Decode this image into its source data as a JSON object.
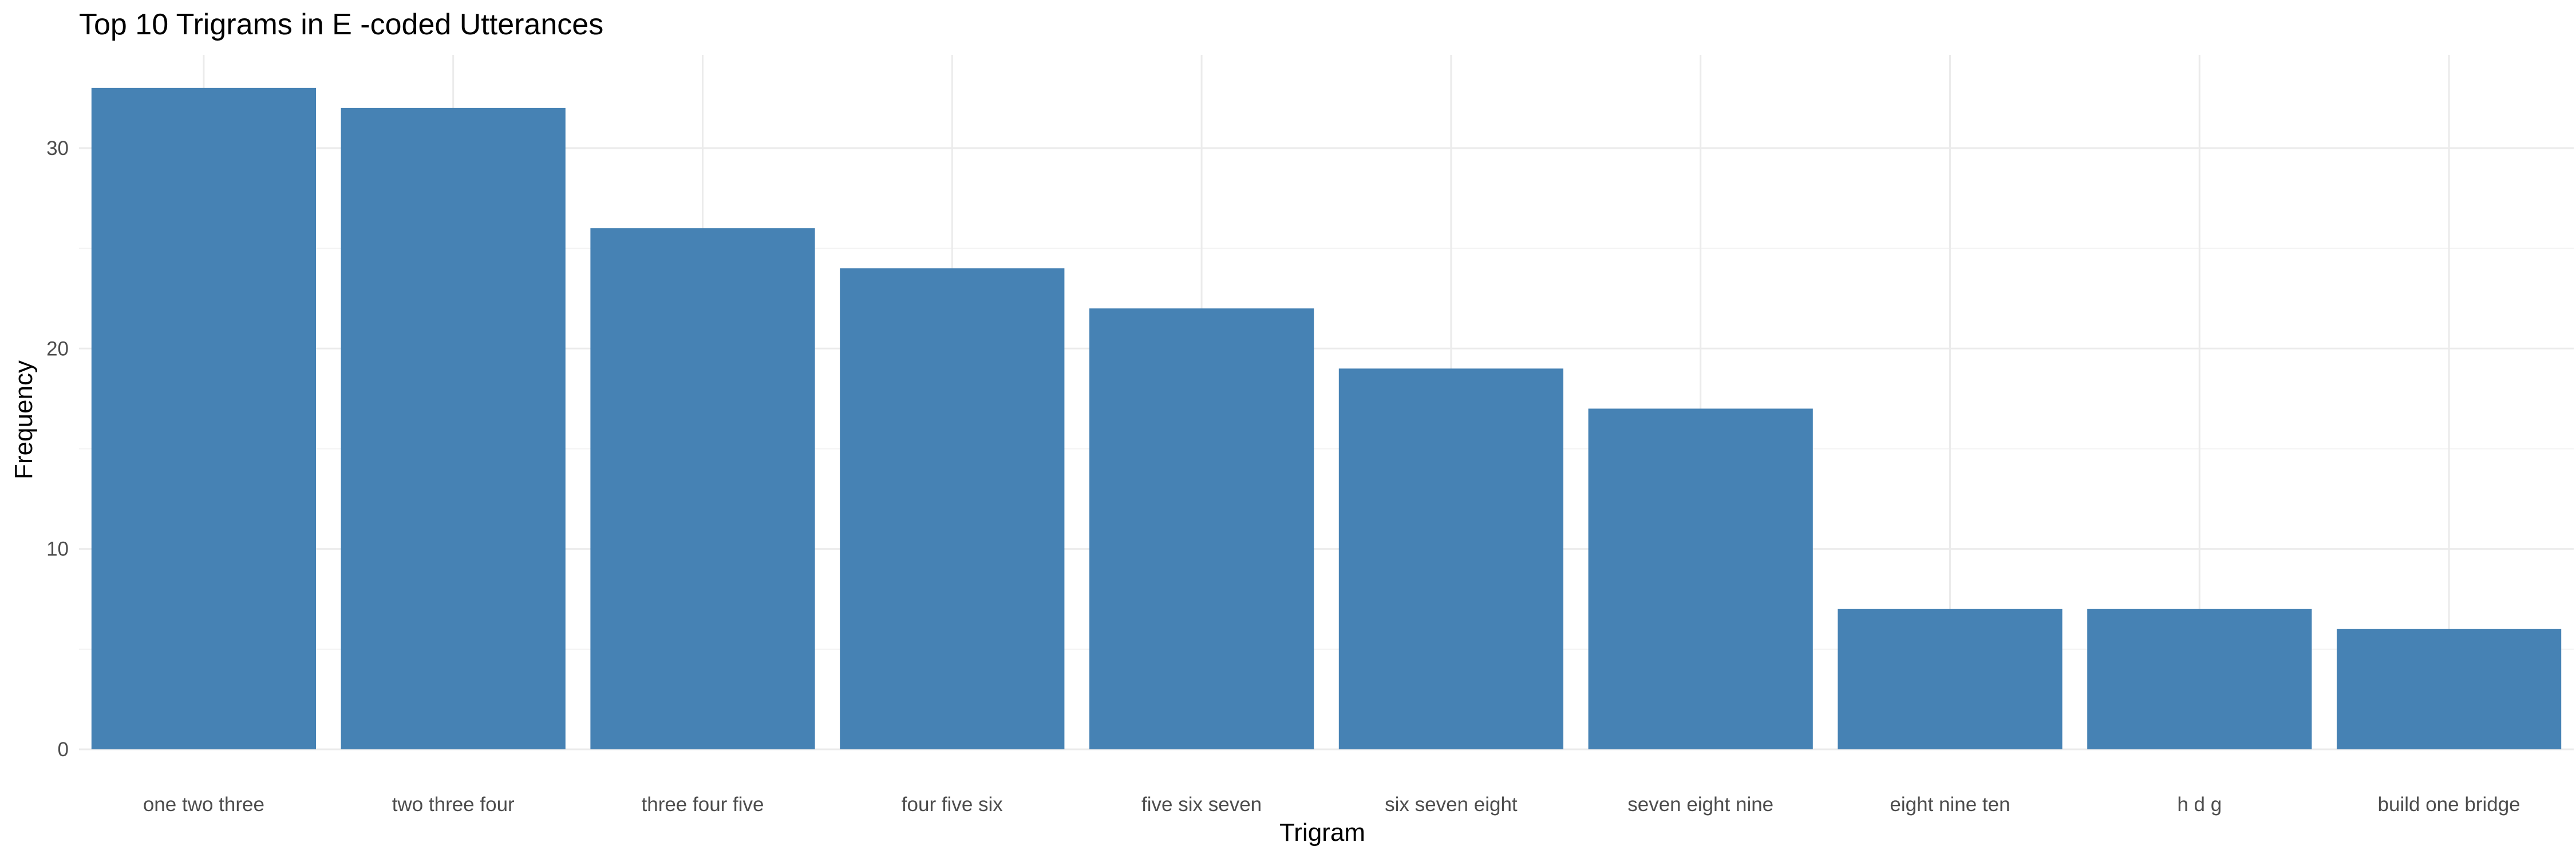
{
  "chart_data": {
    "type": "bar",
    "title": "Top 10 Trigrams in E -coded Utterances",
    "xlabel": "Trigram",
    "ylabel": "Frequency",
    "categories": [
      "one two three",
      "two three four",
      "three four five",
      "four five six",
      "five six seven",
      "six seven eight",
      "seven eight nine",
      "eight nine ten",
      "h d g",
      "build one bridge"
    ],
    "values": [
      33,
      32,
      26,
      24,
      22,
      19,
      17,
      7,
      7,
      6
    ],
    "ylim": [
      0,
      34.65
    ],
    "yticks": [
      0,
      10,
      20,
      30
    ],
    "yticklabels": [
      "0",
      "10",
      "20",
      "30"
    ],
    "grid": true,
    "bar_color": "#4682B4"
  }
}
